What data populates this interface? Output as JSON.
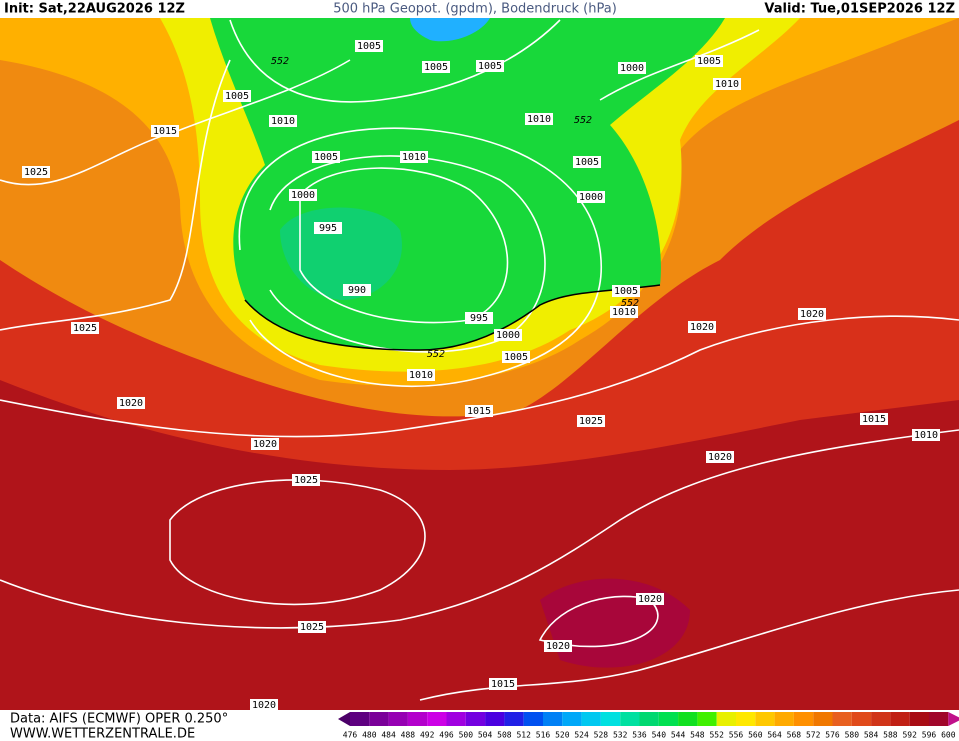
{
  "header": {
    "init": "Init: Sat,22AUG2026 12Z",
    "title": "500 hPa Geopot. (gpdm), Bodendruck (hPa)",
    "valid": "Valid: Tue,01SEP2026 12Z"
  },
  "isobar_labels": [
    1005,
    552,
    1005,
    1005,
    1000,
    1005,
    1005,
    1010,
    1010,
    1015,
    1010,
    552,
    1005,
    1010,
    1005,
    1025,
    1000,
    1000,
    995,
    990,
    1005,
    552,
    1010,
    995,
    1025,
    1000,
    1020,
    1020,
    552,
    1005,
    1010,
    1020,
    1015,
    1025,
    1015,
    1010,
    1020,
    1020,
    1025,
    1020,
    1025,
    1020,
    1015,
    1020
  ],
  "footer": {
    "source": "Data: AIFS (ECMWF) OPER 0.250°",
    "site": "WWW.WETTERZENTRALE.DE"
  },
  "colorbar": {
    "levels": [
      476,
      480,
      484,
      488,
      492,
      496,
      500,
      504,
      508,
      512,
      516,
      520,
      524,
      528,
      532,
      536,
      540,
      544,
      548,
      552,
      556,
      560,
      564,
      568,
      572,
      576,
      580,
      584,
      588,
      592,
      596,
      600
    ],
    "colors": [
      "#4b0068",
      "#5e0080",
      "#7a0099",
      "#9600b3",
      "#b300cc",
      "#cc00e6",
      "#a000e0",
      "#7300e0",
      "#4a00e0",
      "#2020e6",
      "#0050f0",
      "#0080f5",
      "#00a8f8",
      "#00c8f0",
      "#00e0e0",
      "#00e0a0",
      "#00d870",
      "#00e050",
      "#10e020",
      "#40f000",
      "#e8f000",
      "#ffe800",
      "#ffc800",
      "#ffaa00",
      "#ff9000",
      "#f07800",
      "#e86020",
      "#e04a1a",
      "#d03418",
      "#c02014",
      "#a80c14",
      "#a0062a",
      "#c0108a"
    ]
  }
}
